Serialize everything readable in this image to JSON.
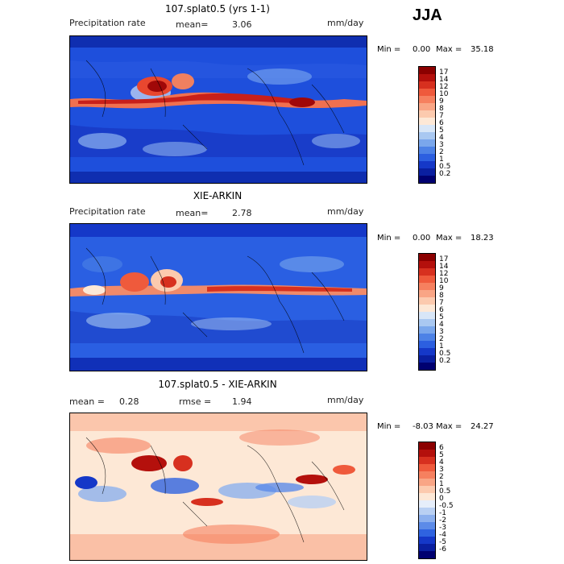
{
  "season": "JJA",
  "panels": [
    {
      "title": "107.splat0.5 (yrs 1-1)",
      "left_label": "Precipitation rate",
      "mean_label": "mean=",
      "mean_value": "3.06",
      "rmse_label": "",
      "rmse_value": "",
      "units": "mm/day",
      "min_label": "Min =",
      "min_value": "0.00",
      "max_label": "Max =",
      "max_value": "35.18",
      "colorbar_labels": [
        "17",
        "14",
        "12",
        "10",
        "9",
        "8",
        "7",
        "6",
        "5",
        "4",
        "3",
        "2",
        "1",
        "0.5",
        "0.2"
      ],
      "colorbar_colors": [
        "#8b0000",
        "#b4100c",
        "#d7301f",
        "#ef5a3c",
        "#f6805f",
        "#f9a585",
        "#fccaae",
        "#fde8d6",
        "#d8e6f7",
        "#a9c8f1",
        "#7aa7ec",
        "#4d82e6",
        "#2c5fe0",
        "#1538c8",
        "#0a1fa0",
        "#000070"
      ]
    },
    {
      "title": "XIE-ARKIN",
      "left_label": "Precipitation rate",
      "mean_label": "mean=",
      "mean_value": "2.78",
      "rmse_label": "",
      "rmse_value": "",
      "units": "mm/day",
      "min_label": "Min =",
      "min_value": "0.00",
      "max_label": "Max =",
      "max_value": "18.23",
      "colorbar_labels": [
        "17",
        "14",
        "12",
        "10",
        "9",
        "8",
        "7",
        "6",
        "5",
        "4",
        "3",
        "2",
        "1",
        "0.5",
        "0.2"
      ],
      "colorbar_colors": [
        "#8b0000",
        "#b4100c",
        "#d7301f",
        "#ef5a3c",
        "#f6805f",
        "#f9a585",
        "#fccaae",
        "#fde8d6",
        "#d8e6f7",
        "#a9c8f1",
        "#7aa7ec",
        "#4d82e6",
        "#2c5fe0",
        "#1538c8",
        "#0a1fa0",
        "#000070"
      ]
    },
    {
      "title": "107.splat0.5 - XIE-ARKIN",
      "left_label": "",
      "mean_label": "mean =",
      "mean_value": "0.28",
      "rmse_label": "rmse =",
      "rmse_value": "1.94",
      "units": "mm/day",
      "min_label": "Min =",
      "min_value": "-8.03",
      "max_label": "Max =",
      "max_value": "24.27",
      "colorbar_labels": [
        "6",
        "5",
        "4",
        "3",
        "2",
        "1",
        "0.5",
        "0",
        "-0.5",
        "-1",
        "-2",
        "-3",
        "-4",
        "-5",
        "-6"
      ],
      "colorbar_colors": [
        "#8b0000",
        "#b4100c",
        "#d7301f",
        "#ef5a3c",
        "#f6805f",
        "#f9a585",
        "#fccaae",
        "#fde8d6",
        "#e6eefa",
        "#b9d0f3",
        "#8cb0ee",
        "#5c8be8",
        "#2f63e0",
        "#1538c8",
        "#0a1fa0",
        "#000070"
      ]
    }
  ]
}
